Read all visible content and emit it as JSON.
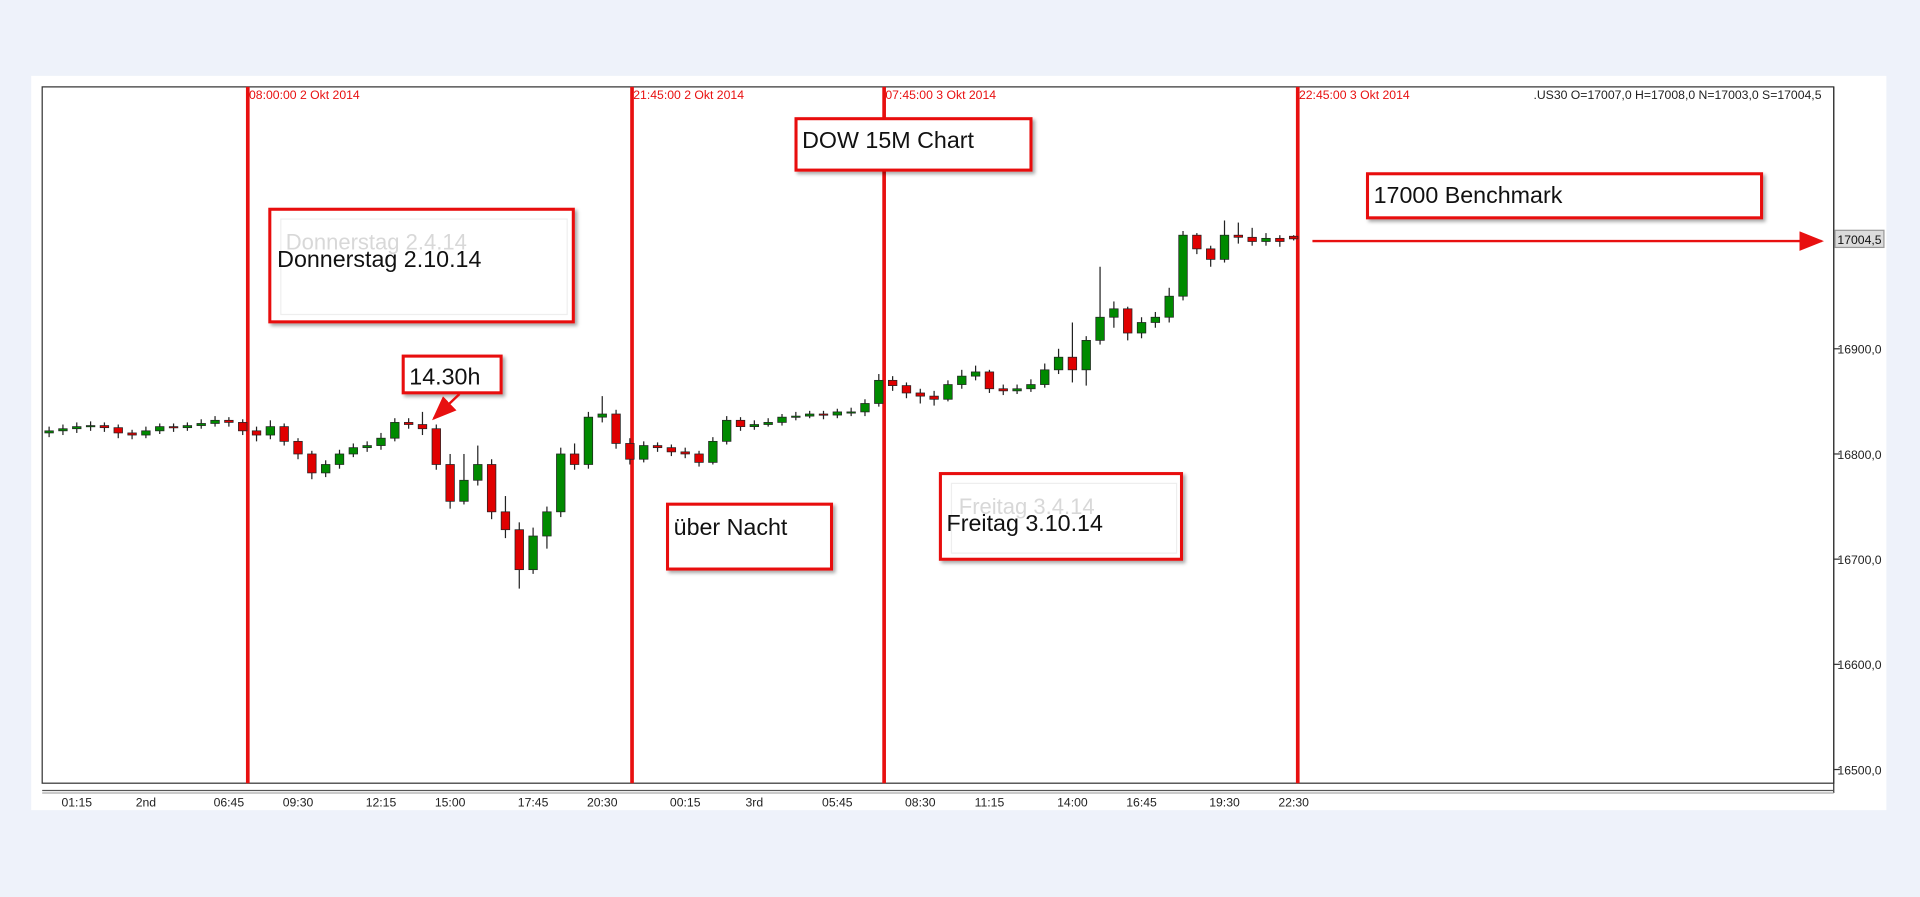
{
  "chart_data": {
    "type": "candlestick",
    "title": "DOW 15M Chart",
    "info": ".US30 O=17007,0 H=17008,0 N=17003,0 S=17004,5",
    "categories": [
      null,
      null,
      "01:15",
      null,
      null,
      null,
      null,
      "2nd",
      null,
      null,
      null,
      null,
      null,
      "06:45",
      null,
      null,
      null,
      null,
      "09:30",
      null,
      null,
      null,
      null,
      null,
      "12:15",
      null,
      null,
      null,
      null,
      "15:00",
      null,
      null,
      null,
      null,
      null,
      "17:45",
      null,
      null,
      null,
      null,
      "20:30",
      null,
      null,
      null,
      null,
      null,
      "00:15",
      null,
      null,
      null,
      null,
      "3rd",
      null,
      null,
      null,
      null,
      null,
      "05:45",
      null,
      null,
      null,
      null,
      null,
      "08:30",
      null,
      null,
      null,
      null,
      "11:15",
      null,
      null,
      null,
      null,
      null,
      "14:00",
      null,
      null,
      null,
      null,
      "16:45",
      null,
      null,
      null,
      null,
      null,
      "19:30",
      null,
      null,
      null,
      null,
      "22:30"
    ],
    "open": [
      16820,
      16822,
      16824,
      16826,
      16827,
      16825,
      16820,
      16818,
      16822,
      16826,
      16825,
      16827,
      16829,
      16832,
      16830,
      16822,
      16818,
      16826,
      16812,
      16800,
      16782,
      16790,
      16800,
      16806,
      16808,
      16815,
      16830,
      16828,
      16824,
      16790,
      16755,
      16775,
      16790,
      16745,
      16728,
      16690,
      16722,
      16745,
      16800,
      16790,
      16835,
      16838,
      16810,
      16795,
      16808,
      16806,
      16802,
      16800,
      16792,
      16812,
      16832,
      16826,
      16828,
      16830,
      16835,
      16836,
      16838,
      16837,
      16840,
      16840,
      16848,
      16870,
      16865,
      16858,
      16855,
      16852,
      16866,
      16874,
      16878,
      16862,
      16860,
      16862,
      16866,
      16880,
      16892,
      16880,
      16908,
      16930,
      16938,
      16915,
      16925,
      16930,
      16950,
      17008,
      16995,
      16985,
      17008,
      17006,
      17002,
      17005,
      17007
    ],
    "high": [
      16826,
      16828,
      16830,
      16831,
      16830,
      16828,
      16823,
      16826,
      16829,
      16829,
      16830,
      16833,
      16836,
      16835,
      16833,
      16826,
      16832,
      16829,
      16815,
      16803,
      16794,
      16804,
      16810,
      16812,
      16820,
      16834,
      16834,
      16840,
      16828,
      16800,
      16800,
      16808,
      16795,
      16760,
      16735,
      16730,
      16750,
      16806,
      16810,
      16840,
      16855,
      16842,
      16815,
      16812,
      16811,
      16809,
      16806,
      16803,
      16816,
      16836,
      16835,
      16832,
      16834,
      16838,
      16840,
      16841,
      16841,
      16843,
      16844,
      16852,
      16876,
      16874,
      16868,
      16862,
      16860,
      16870,
      16880,
      16884,
      16880,
      16866,
      16866,
      16871,
      16886,
      16900,
      16925,
      16912,
      16978,
      16945,
      16940,
      16930,
      16935,
      16958,
      17012,
      17010,
      16998,
      17022,
      17020,
      17015,
      17010,
      17008,
      17008
    ],
    "low": [
      16816,
      16818,
      16820,
      16822,
      16821,
      16815,
      16814,
      16815,
      16819,
      16821,
      16822,
      16824,
      16826,
      16826,
      16818,
      16812,
      16814,
      16808,
      16795,
      16776,
      16778,
      16786,
      16797,
      16802,
      16804,
      16812,
      16824,
      16818,
      16785,
      16748,
      16752,
      16770,
      16738,
      16720,
      16672,
      16686,
      16710,
      16740,
      16785,
      16786,
      16830,
      16805,
      16790,
      16792,
      16802,
      16798,
      16796,
      16788,
      16790,
      16809,
      16822,
      16823,
      16826,
      16827,
      16832,
      16834,
      16833,
      16834,
      16836,
      16836,
      16845,
      16860,
      16853,
      16848,
      16846,
      16850,
      16862,
      16870,
      16858,
      16856,
      16857,
      16859,
      16863,
      16876,
      16868,
      16865,
      16904,
      16920,
      16908,
      16910,
      16920,
      16925,
      16946,
      16990,
      16978,
      16982,
      17000,
      16998,
      16998,
      16997,
      17003
    ],
    "close": [
      16822,
      16824,
      16826,
      16827,
      16825,
      16820,
      16818,
      16822,
      16826,
      16825,
      16827,
      16829,
      16832,
      16830,
      16822,
      16818,
      16826,
      16812,
      16800,
      16782,
      16790,
      16800,
      16806,
      16808,
      16815,
      16830,
      16828,
      16824,
      16790,
      16755,
      16775,
      16790,
      16745,
      16728,
      16690,
      16722,
      16745,
      16800,
      16790,
      16835,
      16838,
      16810,
      16795,
      16808,
      16806,
      16802,
      16800,
      16792,
      16812,
      16832,
      16826,
      16828,
      16830,
      16835,
      16836,
      16838,
      16837,
      16840,
      16840,
      16848,
      16870,
      16865,
      16858,
      16855,
      16852,
      16866,
      16874,
      16878,
      16862,
      16860,
      16862,
      16866,
      16880,
      16892,
      16880,
      16908,
      16930,
      16938,
      16915,
      16925,
      16930,
      16950,
      17008,
      16995,
      16985,
      17008,
      17006,
      17002,
      17005,
      17002,
      17004.5
    ],
    "up_color": "#008a00",
    "down_color": "#e00000",
    "ylim": [
      16487,
      17149
    ],
    "yticks": [
      {
        "value": 16500,
        "label": "16500,0"
      },
      {
        "value": 16600,
        "label": "16600,0"
      },
      {
        "value": 16700,
        "label": "16700,0"
      },
      {
        "value": 16800,
        "label": "16800,0"
      },
      {
        "value": 16900,
        "label": "16900,0"
      }
    ],
    "current_price": {
      "value": 17004.5,
      "label": "17004,5"
    },
    "vlines": [
      "08:00:00 2 Okt 2014",
      "21:45:00 2 Okt 2014",
      "07:45:00 3 Okt 2014",
      "22:45:00 3 Okt 2014"
    ],
    "annotations": [
      "17000 Benchmark",
      "Donnerstag 2.4.14",
      "Donnerstag 2.10.14",
      "14.30h",
      "über Nacht",
      "Freitag 3.4.14",
      "Freitag 3.10.14"
    ]
  }
}
